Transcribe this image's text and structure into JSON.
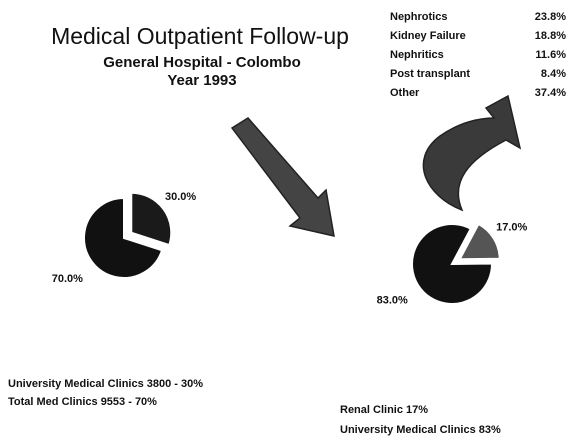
{
  "title": "Medical Outpatient Follow-up",
  "subtitle": [
    "General Hospital - Colombo",
    "Year 1993"
  ],
  "breakdown": [
    {
      "label": "Nephrotics",
      "value": "23.8%"
    },
    {
      "label": "Kidney Failure",
      "value": "18.8%"
    },
    {
      "label": "Nephritics",
      "value": "11.6%"
    },
    {
      "label": "Post transplant",
      "value": "8.4%"
    },
    {
      "label": "Other",
      "value": "37.4%"
    }
  ],
  "notes_left": [
    "University Medical Clinics 3800 - 30%",
    "Total Med Clinics 9553 - 70%"
  ],
  "notes_right": [
    "Renal Clinic 17%",
    "University Medical Clinics 83%"
  ],
  "chart_data": [
    {
      "type": "pie",
      "values": [
        30,
        70
      ],
      "value_labels": [
        "30.0%",
        "70.0%"
      ],
      "colors": [
        "#1a1a1a",
        "#111111"
      ]
    },
    {
      "type": "pie",
      "values": [
        17,
        83
      ],
      "value_labels": [
        "17.0%",
        "83.0%"
      ],
      "colors": [
        "#555555",
        "#111111"
      ]
    }
  ]
}
